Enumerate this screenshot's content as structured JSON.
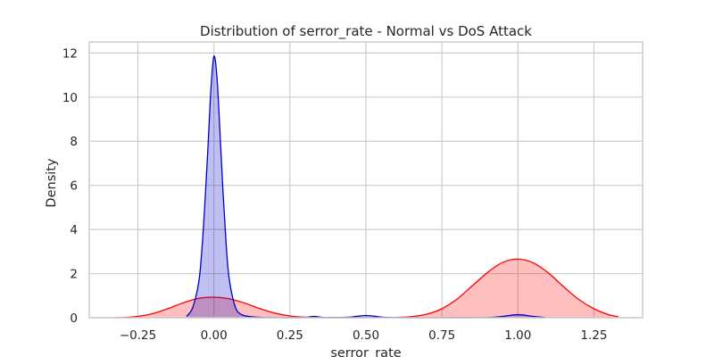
{
  "chart_data": {
    "type": "area",
    "title": "Distribution of serror_rate - Normal vs DoS Attack",
    "xlabel": "serror_rate",
    "ylabel": "Density",
    "xlim": [
      -0.41,
      1.41
    ],
    "ylim": [
      0,
      12.5
    ],
    "x_ticks": [
      -0.25,
      0.0,
      0.25,
      0.5,
      0.75,
      1.0,
      1.25
    ],
    "x_tick_labels": [
      "−0.25",
      "0.00",
      "0.25",
      "0.50",
      "0.75",
      "1.00",
      "1.25"
    ],
    "y_ticks": [
      0,
      2,
      4,
      6,
      8,
      10,
      12
    ],
    "y_tick_labels": [
      "0",
      "2",
      "4",
      "6",
      "8",
      "10",
      "12"
    ],
    "grid": true,
    "legend": false,
    "series": [
      {
        "color": "#ff0000",
        "fill_opacity": 0.25,
        "x": [
          -0.33,
          -0.3,
          -0.25,
          -0.2,
          -0.15,
          -0.1,
          -0.05,
          0.0,
          0.05,
          0.1,
          0.15,
          0.2,
          0.25,
          0.3,
          0.35,
          0.4,
          0.45,
          0.5,
          0.55,
          0.6,
          0.65,
          0.7,
          0.75,
          0.8,
          0.85,
          0.9,
          0.95,
          1.0,
          1.05,
          1.1,
          1.15,
          1.2,
          1.25,
          1.3,
          1.33
        ],
        "y": [
          0.003,
          0.01,
          0.06,
          0.19,
          0.42,
          0.68,
          0.88,
          0.93,
          0.86,
          0.67,
          0.42,
          0.21,
          0.08,
          0.024,
          0.006,
          0.002,
          0.001,
          0.001,
          0.004,
          0.015,
          0.05,
          0.16,
          0.41,
          0.85,
          1.45,
          2.05,
          2.51,
          2.66,
          2.49,
          2.03,
          1.41,
          0.83,
          0.41,
          0.13,
          0.05
        ]
      },
      {
        "color": "#0000cc",
        "fill_opacity": 0.25,
        "x": [
          -0.09,
          -0.07,
          -0.05,
          -0.04,
          -0.03,
          -0.02,
          -0.01,
          0.0,
          0.01,
          0.02,
          0.03,
          0.04,
          0.05,
          0.07,
          0.09,
          0.12,
          0.15,
          0.2,
          0.25,
          0.3,
          0.33,
          0.36,
          0.4,
          0.45,
          0.5,
          0.55,
          0.6,
          0.7,
          0.8,
          0.9,
          0.95,
          1.0,
          1.05,
          1.09
        ],
        "y": [
          0.06,
          0.45,
          1.6,
          3.0,
          5.1,
          7.6,
          10.3,
          11.85,
          10.9,
          8.4,
          5.7,
          3.4,
          1.8,
          0.5,
          0.15,
          0.05,
          0.02,
          0.005,
          0.003,
          0.01,
          0.06,
          0.01,
          0.01,
          0.03,
          0.1,
          0.03,
          0.005,
          0.001,
          0.002,
          0.01,
          0.06,
          0.14,
          0.06,
          0.01
        ]
      }
    ]
  }
}
